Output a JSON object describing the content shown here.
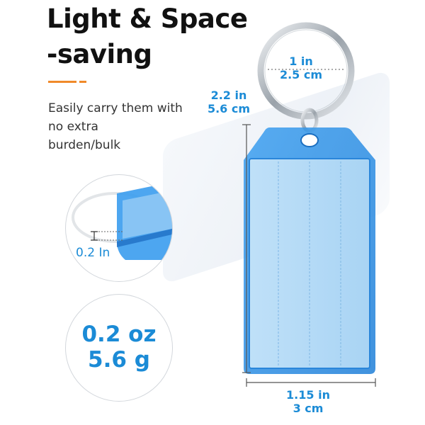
{
  "headline": {
    "line1": "Light & Space",
    "line2": "-saving"
  },
  "subtext": {
    "line1": "Easily carry them with",
    "line2": "no extra",
    "line3": "burden/bulk"
  },
  "dimensions": {
    "ring": {
      "imperial": "1 in",
      "metric": "2.5 cm"
    },
    "height": {
      "imperial": "2.2 in",
      "metric": "5.6 cm"
    },
    "width": {
      "imperial": "1.15 in",
      "metric": "3 cm"
    },
    "thickness": "0.2 In"
  },
  "weight": {
    "imperial": "0.2 oz",
    "metric": "5.6 g"
  },
  "colors": {
    "accent": "#1b8bd6",
    "tag_blue": "#4aa9f0",
    "orange_rule": "#f08a2a"
  }
}
